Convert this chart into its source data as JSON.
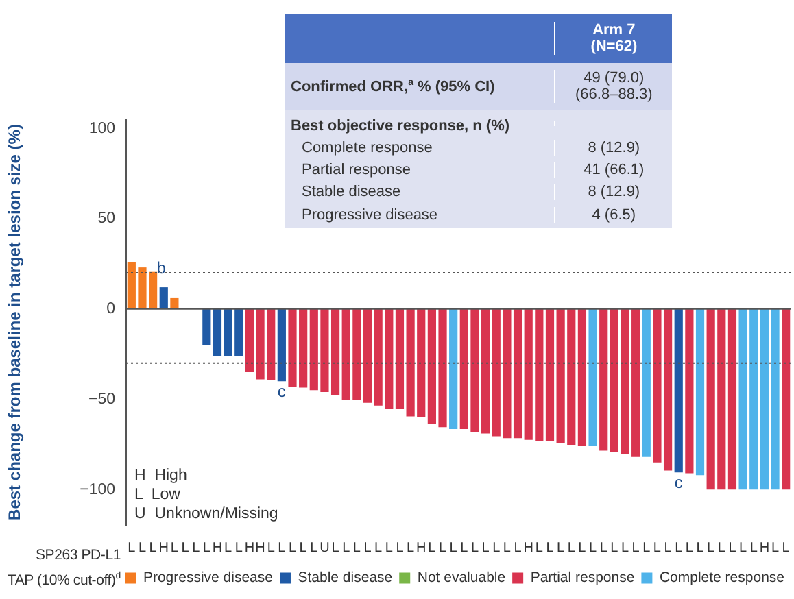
{
  "chart_data": {
    "type": "bar",
    "ylabel": "Best change from baseline in target lesion size (%)",
    "xlabel": "SP263 PD-L1\nTAP (10% cut-off)$^{d}$",
    "categories": [
      "L",
      "L",
      "L",
      "H",
      "L",
      "L",
      "L",
      "L",
      "H",
      "L",
      "L",
      "H",
      "H",
      "L",
      "L",
      "L",
      "L",
      "L",
      "U",
      "L",
      "L",
      "L",
      "L",
      "L",
      "L",
      "L",
      "L",
      "H",
      "L",
      "L",
      "L",
      "L",
      "L",
      "L",
      "L",
      "L",
      "L",
      "H",
      "L",
      "L",
      "L",
      "L",
      "L",
      "L",
      "L",
      "L",
      "L",
      "L",
      "L",
      "L",
      "L",
      "L",
      "L",
      "L",
      "L",
      "L",
      "L",
      "L",
      "L",
      "H",
      "L",
      "L"
    ],
    "series": [
      {
        "name": "Progressive disease",
        "color": "#f47b20",
        "values": [
          26,
          23,
          20.5,
          null,
          6,
          null,
          null,
          null,
          null,
          null,
          null,
          null,
          null,
          null,
          null,
          null,
          null,
          null,
          null,
          null,
          null,
          null,
          null,
          null,
          null,
          null,
          null,
          null,
          null,
          null,
          null,
          null,
          null,
          null,
          null,
          null,
          null,
          null,
          null,
          null,
          null,
          null,
          null,
          null,
          null,
          null,
          null,
          null,
          null,
          null,
          null,
          null,
          null,
          null,
          null,
          null,
          null,
          null,
          null,
          null,
          null,
          null
        ]
      },
      {
        "name": "Stable disease",
        "color": "#1f5aa6",
        "values": [
          null,
          null,
          null,
          12,
          null,
          null,
          null,
          -20,
          -26,
          -26,
          -26,
          null,
          null,
          null,
          -40,
          null,
          null,
          null,
          null,
          null,
          null,
          null,
          null,
          null,
          null,
          null,
          null,
          null,
          null,
          null,
          null,
          null,
          null,
          null,
          null,
          null,
          null,
          null,
          null,
          null,
          null,
          null,
          null,
          null,
          null,
          null,
          null,
          null,
          null,
          null,
          null,
          -90.5,
          null,
          null,
          null,
          null,
          null,
          null,
          null,
          null,
          null,
          null
        ]
      },
      {
        "name": "Not evaluable",
        "color": "#7ab648",
        "values": [
          null,
          null,
          null,
          null,
          null,
          null,
          null,
          null,
          null,
          null,
          null,
          null,
          null,
          null,
          null,
          null,
          null,
          null,
          null,
          null,
          null,
          null,
          null,
          null,
          null,
          null,
          null,
          null,
          null,
          null,
          null,
          null,
          null,
          null,
          null,
          null,
          null,
          null,
          null,
          null,
          null,
          null,
          null,
          null,
          null,
          null,
          null,
          null,
          null,
          null,
          null,
          null,
          null,
          null,
          null,
          null,
          null,
          null,
          null,
          null,
          null,
          null
        ]
      },
      {
        "name": "Partial response",
        "color": "#d9344f",
        "values": [
          null,
          null,
          null,
          null,
          null,
          null,
          null,
          null,
          null,
          null,
          null,
          -35,
          -39,
          -39.5,
          null,
          -43,
          -43.5,
          -45,
          -46,
          -47.5,
          -50.5,
          -50.5,
          -52,
          -53.5,
          -55.5,
          -55.5,
          -59.5,
          -60,
          -63.5,
          -65.5,
          null,
          -66.5,
          -68,
          -69,
          -70.5,
          -71.5,
          -71.5,
          -72.5,
          -73,
          -73,
          -74.5,
          -75.5,
          -76,
          null,
          -78.5,
          -79,
          -80.5,
          -82,
          null,
          -85,
          -89.5,
          null,
          -91,
          null,
          -100,
          -100,
          -100,
          null,
          null,
          null,
          null,
          -100
        ]
      },
      {
        "name": "Complete response",
        "color": "#4fb3ea",
        "values": [
          null,
          null,
          null,
          null,
          null,
          null,
          null,
          null,
          null,
          null,
          null,
          null,
          null,
          null,
          null,
          null,
          null,
          null,
          null,
          null,
          null,
          null,
          null,
          null,
          null,
          null,
          null,
          null,
          null,
          null,
          -66.5,
          null,
          null,
          null,
          null,
          null,
          null,
          null,
          null,
          null,
          null,
          null,
          null,
          -76,
          null,
          null,
          null,
          null,
          -82,
          null,
          null,
          null,
          null,
          -92,
          null,
          null,
          null,
          -100,
          -100,
          -100,
          -100,
          null
        ]
      }
    ],
    "ylim": [
      -120,
      105
    ],
    "yticks": [
      100,
      50,
      0,
      {
        "value": -50,
        "label": "−50"
      },
      {
        "value": -100,
        "label": "−100"
      }
    ],
    "grid": false,
    "legend": "bottom",
    "ref_lines": [
      {
        "axis": "y",
        "value": 0,
        "line_style": "solid",
        "color": "#555555"
      },
      {
        "axis": "y",
        "value": 20,
        "line_style": "dotted",
        "color": "#555555"
      },
      {
        "axis": "y",
        "value": -30,
        "line_style": "dotted",
        "color": "#555555"
      }
    ],
    "annotations": [
      "Arm 7\n(N=62)",
      "Confirmed ORR,$^{a}$ % (95% CI)",
      "49 (79.0)\n(66.8–88.3)",
      "Best objective response, n (%)",
      "Complete response",
      "8 (12.9)",
      "Partial response",
      "41 (66.1)",
      "Stable disease",
      "8 (12.9)",
      "Progressive disease",
      "4 (6.5)",
      "H  High",
      "L  Low",
      "U  Unknown/Missing",
      {
        "text": "b",
        "y": 20.5
      },
      {
        "text": "c",
        "y": -40
      },
      {
        "text": "c",
        "y": -90.5
      }
    ]
  }
}
